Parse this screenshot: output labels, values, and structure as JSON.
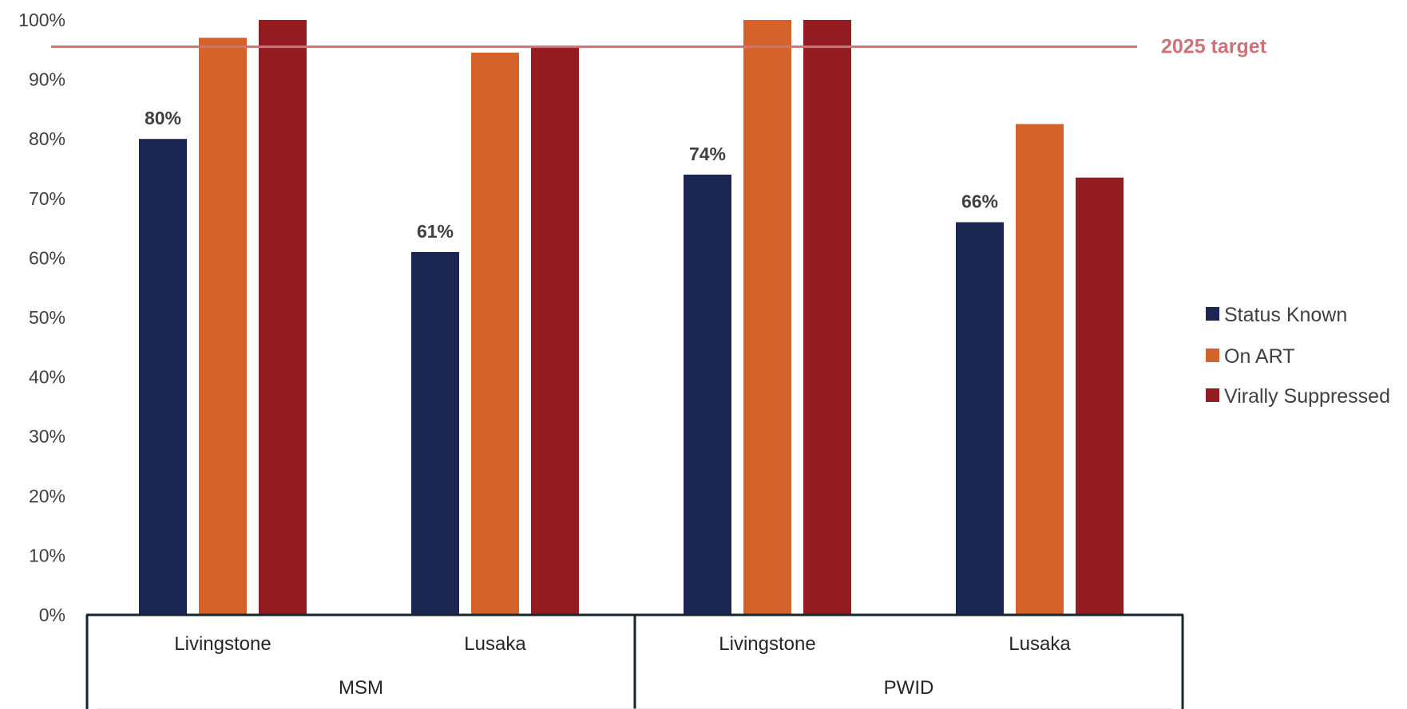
{
  "chart_data": {
    "type": "bar",
    "groups": [
      "MSM",
      "PWID"
    ],
    "categories": [
      "Livingstone",
      "Lusaka",
      "Livingstone",
      "Lusaka"
    ],
    "category_group": [
      0,
      0,
      1,
      1
    ],
    "series": [
      {
        "name": "Status Known",
        "color": "#1b2652",
        "values": [
          80,
          61,
          74,
          66
        ]
      },
      {
        "name": "On ART",
        "color": "#d4622b",
        "values": [
          97,
          94.5,
          100,
          82.5
        ]
      },
      {
        "name": "Virally Suppressed",
        "color": "#931c20",
        "values": [
          100,
          95.5,
          100,
          73.5
        ]
      }
    ],
    "data_labels": [
      {
        "series": 0,
        "index": 0,
        "text": "80%"
      },
      {
        "series": 0,
        "index": 1,
        "text": "61%"
      },
      {
        "series": 0,
        "index": 2,
        "text": "74%"
      },
      {
        "series": 0,
        "index": 3,
        "text": "66%"
      }
    ],
    "target": {
      "value": 95.5,
      "label": "2025 target",
      "color": "#cd7378"
    },
    "y_ticks": [
      "0%",
      "10%",
      "20%",
      "30%",
      "40%",
      "50%",
      "60%",
      "70%",
      "80%",
      "90%",
      "100%"
    ],
    "ylim": [
      0,
      100
    ],
    "legend_position": "right",
    "grid": false
  }
}
